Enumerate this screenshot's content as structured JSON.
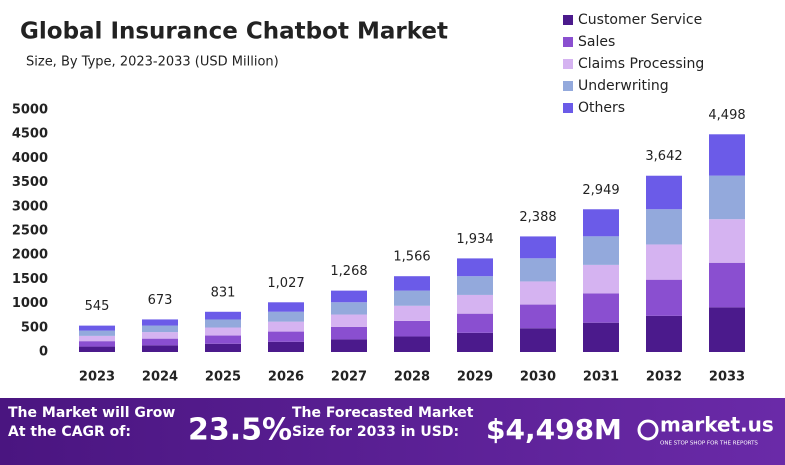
{
  "chart_data": {
    "type": "stacked_bar",
    "title": "Global Insurance Chatbot Market",
    "subtitle": "Size, By Type, 2023-2033 (USD Million)",
    "categories": [
      "2023",
      "2024",
      "2025",
      "2026",
      "2027",
      "2028",
      "2029",
      "2030",
      "2031",
      "2032",
      "2033"
    ],
    "series": [
      {
        "name": "Customer Service",
        "color": "#4b1a8c",
        "values": [
          112,
          138,
          170,
          211,
          260,
          321,
          396,
          490,
          605,
          747,
          922
        ]
      },
      {
        "name": "Sales",
        "color": "#8a4fd0",
        "values": [
          112,
          138,
          170,
          211,
          260,
          321,
          396,
          490,
          605,
          747,
          922
        ]
      },
      {
        "name": "Claims Processing",
        "color": "#d5b3f1",
        "values": [
          109,
          135,
          166,
          205,
          254,
          313,
          387,
          478,
          590,
          728,
          900
        ]
      },
      {
        "name": "Underwriting",
        "color": "#93a9dc",
        "values": [
          109,
          135,
          166,
          205,
          254,
          313,
          387,
          478,
          590,
          728,
          900
        ]
      },
      {
        "name": "Others",
        "color": "#6b5be8",
        "values": [
          103,
          127,
          159,
          195,
          240,
          298,
          368,
          452,
          559,
          692,
          854
        ]
      }
    ],
    "totals": [
      545,
      673,
      831,
      1027,
      1268,
      1566,
      1934,
      2388,
      2949,
      3642,
      4498
    ],
    "total_labels": [
      "545",
      "673",
      "831",
      "1,027",
      "1,268",
      "1,566",
      "1,934",
      "2,388",
      "2,949",
      "3,642",
      "4,498"
    ],
    "ylim": [
      0,
      5000
    ],
    "yticks": [
      0,
      500,
      1000,
      1500,
      2000,
      2500,
      3000,
      3500,
      4000,
      4500,
      5000
    ],
    "legend": "top-right"
  },
  "banner": {
    "cagr_text": "The Market will Grow At the CAGR of:",
    "cagr": "23.5%",
    "forecast_text": "The Forecasted Market Size for 2033 in USD:",
    "forecast": "$4,498M",
    "brand": "market.us",
    "tagline": "ONE STOP SHOP FOR THE REPORTS"
  }
}
